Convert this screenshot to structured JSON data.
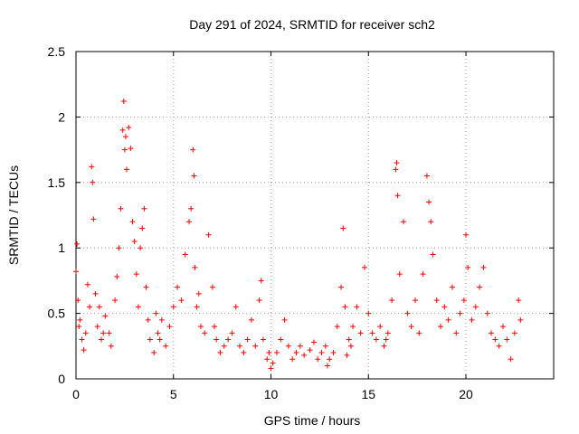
{
  "chart_data": {
    "type": "scatter",
    "title": "Day 291 of 2024, SRMTID for receiver sch2",
    "xlabel": "GPS time / hours",
    "ylabel": "SRMTID / TECUs",
    "xlim": [
      0,
      24.5
    ],
    "ylim": [
      0,
      2.5
    ],
    "xticks": [
      0,
      5,
      10,
      15,
      20
    ],
    "xtick_labels": [
      "0",
      "5",
      "10",
      "15",
      "20"
    ],
    "yticks": [
      0,
      0.5,
      1,
      1.5,
      2,
      2.5
    ],
    "ytick_labels": [
      "0",
      "0.5",
      "1",
      "1.5",
      "2",
      "2.5"
    ],
    "grid": true,
    "marker": "+",
    "color": "#ff0000",
    "series": [
      {
        "name": "SRMTID",
        "points": [
          [
            0.0,
            0.82
          ],
          [
            0.05,
            1.03
          ],
          [
            0.1,
            0.6
          ],
          [
            0.2,
            0.45
          ],
          [
            0.3,
            0.3
          ],
          [
            0.4,
            0.22
          ],
          [
            0.5,
            0.35
          ],
          [
            0.6,
            0.72
          ],
          [
            0.7,
            0.55
          ],
          [
            0.8,
            1.62
          ],
          [
            0.85,
            1.5
          ],
          [
            0.9,
            1.22
          ],
          [
            1.0,
            0.65
          ],
          [
            1.1,
            0.4
          ],
          [
            1.2,
            0.55
          ],
          [
            1.3,
            0.3
          ],
          [
            1.5,
            0.48
          ],
          [
            1.7,
            0.35
          ],
          [
            1.8,
            0.25
          ],
          [
            2.0,
            0.6
          ],
          [
            2.1,
            0.78
          ],
          [
            2.2,
            1.0
          ],
          [
            2.3,
            1.3
          ],
          [
            2.4,
            1.9
          ],
          [
            2.45,
            2.12
          ],
          [
            2.5,
            1.75
          ],
          [
            2.55,
            1.85
          ],
          [
            2.6,
            1.6
          ],
          [
            2.7,
            1.92
          ],
          [
            2.8,
            1.76
          ],
          [
            2.9,
            1.2
          ],
          [
            3.0,
            1.05
          ],
          [
            3.1,
            0.8
          ],
          [
            3.2,
            0.55
          ],
          [
            3.3,
            1.0
          ],
          [
            3.4,
            1.15
          ],
          [
            3.5,
            1.3
          ],
          [
            3.6,
            0.7
          ],
          [
            3.7,
            0.45
          ],
          [
            3.8,
            0.3
          ],
          [
            4.0,
            0.2
          ],
          [
            4.2,
            0.35
          ],
          [
            4.4,
            0.45
          ],
          [
            4.6,
            0.25
          ],
          [
            4.8,
            0.4
          ],
          [
            5.0,
            0.55
          ],
          [
            5.2,
            0.7
          ],
          [
            5.4,
            0.6
          ],
          [
            5.6,
            0.95
          ],
          [
            5.8,
            1.2
          ],
          [
            5.9,
            1.3
          ],
          [
            6.0,
            1.75
          ],
          [
            6.05,
            1.55
          ],
          [
            6.1,
            0.85
          ],
          [
            6.2,
            0.55
          ],
          [
            6.4,
            0.4
          ],
          [
            6.6,
            0.35
          ],
          [
            6.8,
            1.1
          ],
          [
            7.0,
            0.7
          ],
          [
            7.2,
            0.3
          ],
          [
            7.4,
            0.2
          ],
          [
            7.6,
            0.25
          ],
          [
            7.8,
            0.3
          ],
          [
            8.0,
            0.35
          ],
          [
            8.2,
            0.55
          ],
          [
            8.4,
            0.25
          ],
          [
            8.6,
            0.2
          ],
          [
            8.8,
            0.3
          ],
          [
            9.0,
            0.45
          ],
          [
            9.2,
            0.25
          ],
          [
            9.4,
            0.6
          ],
          [
            9.5,
            0.75
          ],
          [
            9.6,
            0.3
          ],
          [
            9.8,
            0.15
          ],
          [
            10.0,
            0.08
          ],
          [
            10.1,
            0.12
          ],
          [
            10.3,
            0.2
          ],
          [
            10.5,
            0.3
          ],
          [
            10.7,
            0.45
          ],
          [
            10.9,
            0.25
          ],
          [
            11.1,
            0.15
          ],
          [
            11.3,
            0.2
          ],
          [
            11.5,
            0.25
          ],
          [
            11.7,
            0.18
          ],
          [
            12.0,
            0.22
          ],
          [
            12.2,
            0.28
          ],
          [
            12.4,
            0.15
          ],
          [
            12.6,
            0.2
          ],
          [
            12.8,
            0.25
          ],
          [
            13.0,
            0.15
          ],
          [
            13.2,
            0.2
          ],
          [
            13.4,
            0.4
          ],
          [
            13.6,
            0.7
          ],
          [
            13.7,
            1.15
          ],
          [
            13.8,
            0.55
          ],
          [
            14.0,
            0.3
          ],
          [
            14.2,
            0.4
          ],
          [
            14.4,
            0.55
          ],
          [
            14.6,
            0.35
          ],
          [
            14.8,
            0.85
          ],
          [
            15.0,
            0.5
          ],
          [
            15.2,
            0.35
          ],
          [
            15.4,
            0.3
          ],
          [
            15.6,
            0.4
          ],
          [
            15.8,
            0.25
          ],
          [
            16.0,
            0.35
          ],
          [
            16.2,
            0.6
          ],
          [
            16.4,
            1.6
          ],
          [
            16.45,
            1.65
          ],
          [
            16.5,
            1.4
          ],
          [
            16.6,
            0.8
          ],
          [
            16.8,
            1.2
          ],
          [
            17.0,
            0.5
          ],
          [
            17.2,
            0.4
          ],
          [
            17.4,
            0.6
          ],
          [
            17.6,
            0.35
          ],
          [
            17.8,
            0.8
          ],
          [
            18.0,
            1.55
          ],
          [
            18.1,
            1.35
          ],
          [
            18.2,
            1.2
          ],
          [
            18.3,
            0.95
          ],
          [
            18.5,
            0.6
          ],
          [
            18.7,
            0.4
          ],
          [
            18.9,
            0.55
          ],
          [
            19.1,
            0.45
          ],
          [
            19.3,
            0.7
          ],
          [
            19.5,
            0.35
          ],
          [
            19.7,
            0.5
          ],
          [
            19.9,
            0.6
          ],
          [
            20.0,
            1.1
          ],
          [
            20.1,
            0.85
          ],
          [
            20.3,
            0.45
          ],
          [
            20.5,
            0.55
          ],
          [
            20.7,
            0.7
          ],
          [
            20.9,
            0.85
          ],
          [
            21.1,
            0.5
          ],
          [
            21.3,
            0.35
          ],
          [
            21.5,
            0.3
          ],
          [
            21.7,
            0.25
          ],
          [
            21.9,
            0.4
          ],
          [
            22.1,
            0.3
          ],
          [
            22.3,
            0.15
          ],
          [
            22.5,
            0.35
          ],
          [
            22.7,
            0.6
          ],
          [
            22.8,
            0.45
          ],
          [
            13.9,
            0.18
          ],
          [
            14.1,
            0.25
          ],
          [
            15.9,
            0.3
          ],
          [
            9.9,
            0.2
          ],
          [
            4.1,
            0.5
          ],
          [
            4.3,
            0.3
          ],
          [
            1.4,
            0.35
          ],
          [
            0.15,
            0.4
          ],
          [
            6.3,
            0.65
          ],
          [
            7.1,
            0.4
          ],
          [
            12.9,
            0.1
          ]
        ]
      }
    ]
  }
}
